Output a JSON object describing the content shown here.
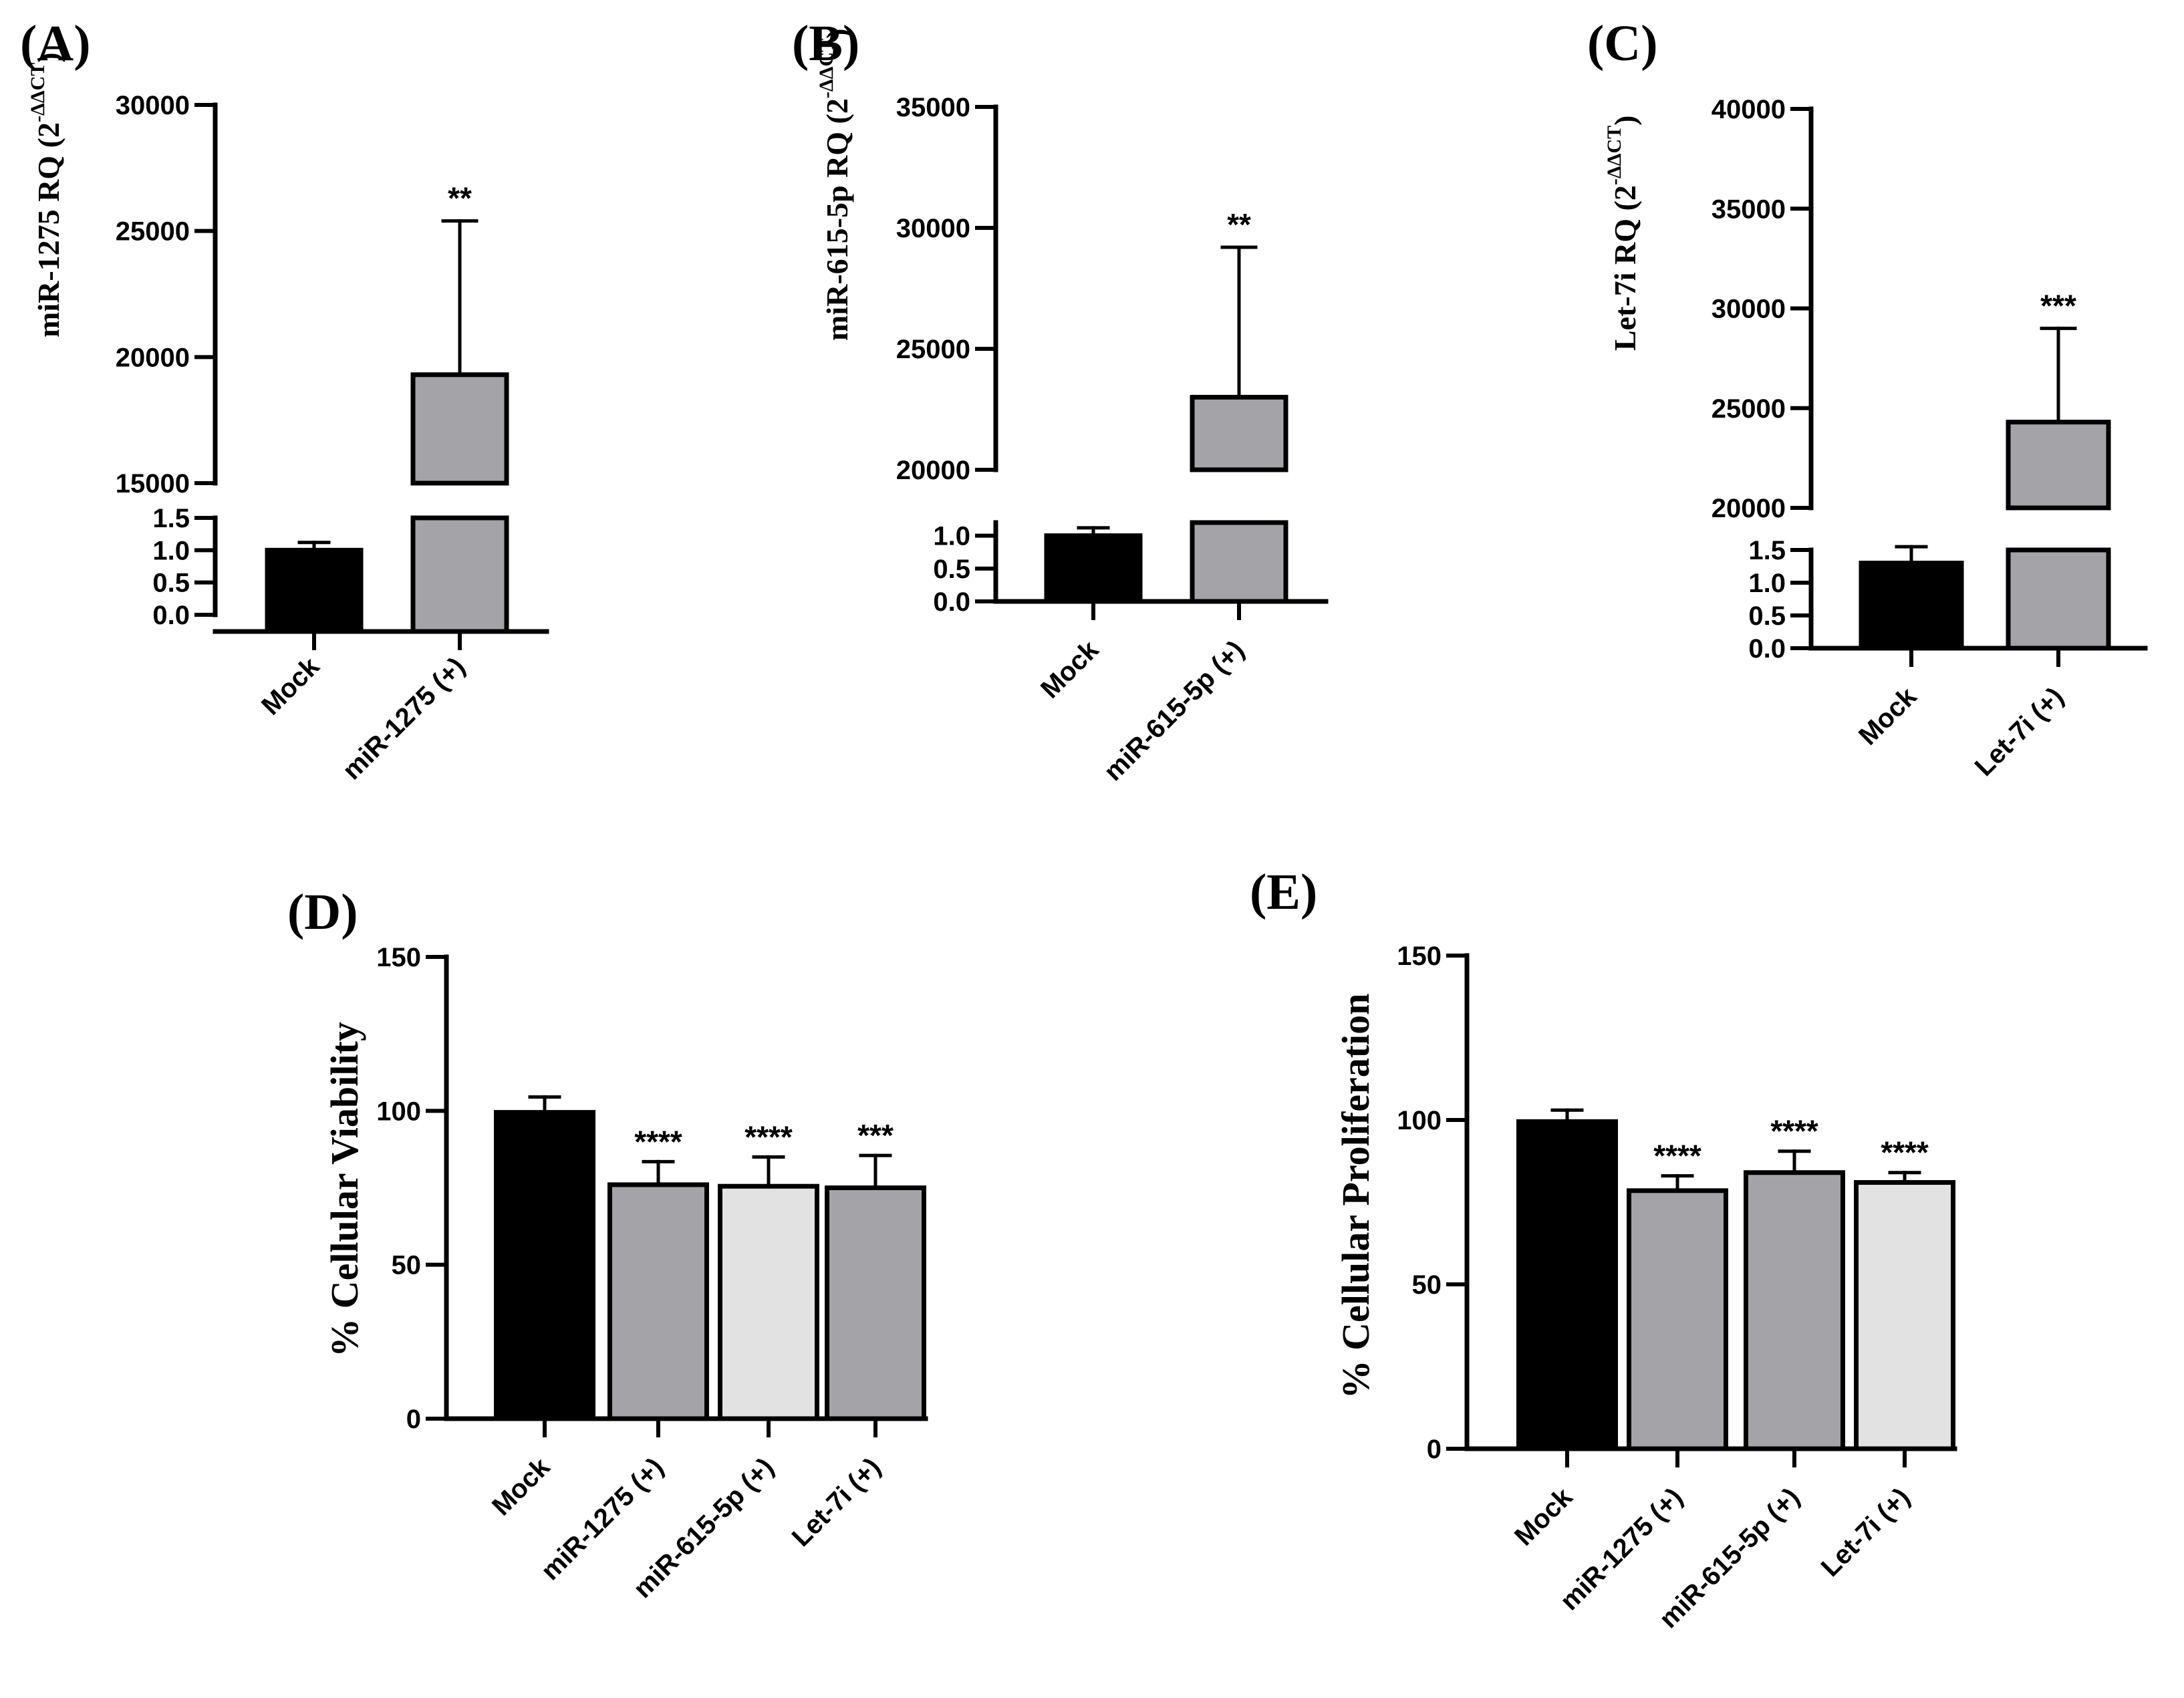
{
  "chart_data": [
    {
      "id": "A",
      "type": "bar",
      "panel_label": "(A)",
      "ylabel_main": "miR-1275 RQ (2",
      "ylabel_sup": "-ΔΔCT",
      "ylabel_close": ")",
      "categories": [
        "Mock",
        "miR-1275 (+)"
      ],
      "values": [
        1.0,
        19300
      ],
      "errors": [
        0.12,
        6100
      ],
      "significance": [
        "",
        "**"
      ],
      "colors": [
        "#000000",
        "#a3a3a8"
      ],
      "axis_break": true,
      "lower_ticks": [
        "0.0",
        "0.5",
        "1.0",
        "1.5"
      ],
      "upper_ticks": [
        "15000",
        "20000",
        "25000",
        "30000"
      ]
    },
    {
      "id": "B",
      "type": "bar",
      "panel_label": "(B)",
      "ylabel_main": "miR-615-5p RQ (2",
      "ylabel_sup": "-ΔΔCT",
      "ylabel_close": ")",
      "categories": [
        "Mock",
        "miR-615-5p (+)"
      ],
      "values": [
        1.0,
        23000
      ],
      "errors": [
        0.12,
        6200
      ],
      "significance": [
        "",
        "**"
      ],
      "colors": [
        "#000000",
        "#a3a3a8"
      ],
      "axis_break": true,
      "lower_ticks": [
        "0.0",
        "0.5",
        "1.0"
      ],
      "upper_ticks": [
        "20000",
        "25000",
        "30000",
        "35000"
      ]
    },
    {
      "id": "C",
      "type": "bar",
      "panel_label": "(C)",
      "ylabel_main": "Let-7i RQ (2",
      "ylabel_sup": "-ΔΔCT",
      "ylabel_close": ")",
      "categories": [
        "Mock",
        "Let-7i (+)"
      ],
      "values": [
        1.3,
        24300
      ],
      "errors": [
        0.25,
        4700
      ],
      "significance": [
        "",
        "***"
      ],
      "colors": [
        "#000000",
        "#a3a3a8"
      ],
      "axis_break": true,
      "lower_ticks": [
        "0.0",
        "0.5",
        "1.0",
        "1.5"
      ],
      "upper_ticks": [
        "20000",
        "25000",
        "30000",
        "35000",
        "40000"
      ]
    },
    {
      "id": "D",
      "type": "bar",
      "panel_label": "(D)",
      "ylabel": "% Cellular Viability",
      "categories": [
        "Mock",
        "miR-1275 (+)",
        "miR-615-5p (+)",
        "Let-7i (+)"
      ],
      "values": [
        99.5,
        76,
        75.5,
        75
      ],
      "errors": [
        5,
        7.5,
        9.5,
        10.5
      ],
      "significance": [
        "",
        "****",
        "****",
        "***"
      ],
      "colors": [
        "#000000",
        "#a3a3a8",
        "#e2e2e2",
        "#a3a3a8"
      ],
      "ylim": [
        0,
        150
      ],
      "yticks": [
        "0",
        "50",
        "100",
        "150"
      ]
    },
    {
      "id": "E",
      "type": "bar",
      "panel_label": "(E)",
      "ylabel": "% Cellular Proliferation",
      "categories": [
        "Mock",
        "miR-1275 (+)",
        "miR-615-5p (+)",
        "Let-7i (+)"
      ],
      "values": [
        99.5,
        78.5,
        84,
        81
      ],
      "errors": [
        3.5,
        4.5,
        6.5,
        3
      ],
      "significance": [
        "",
        "****",
        "****",
        "****"
      ],
      "colors": [
        "#000000",
        "#a3a3a8",
        "#a3a3a8",
        "#e2e2e2"
      ],
      "ylim": [
        0,
        150
      ],
      "yticks": [
        "0",
        "50",
        "100",
        "150"
      ]
    }
  ]
}
